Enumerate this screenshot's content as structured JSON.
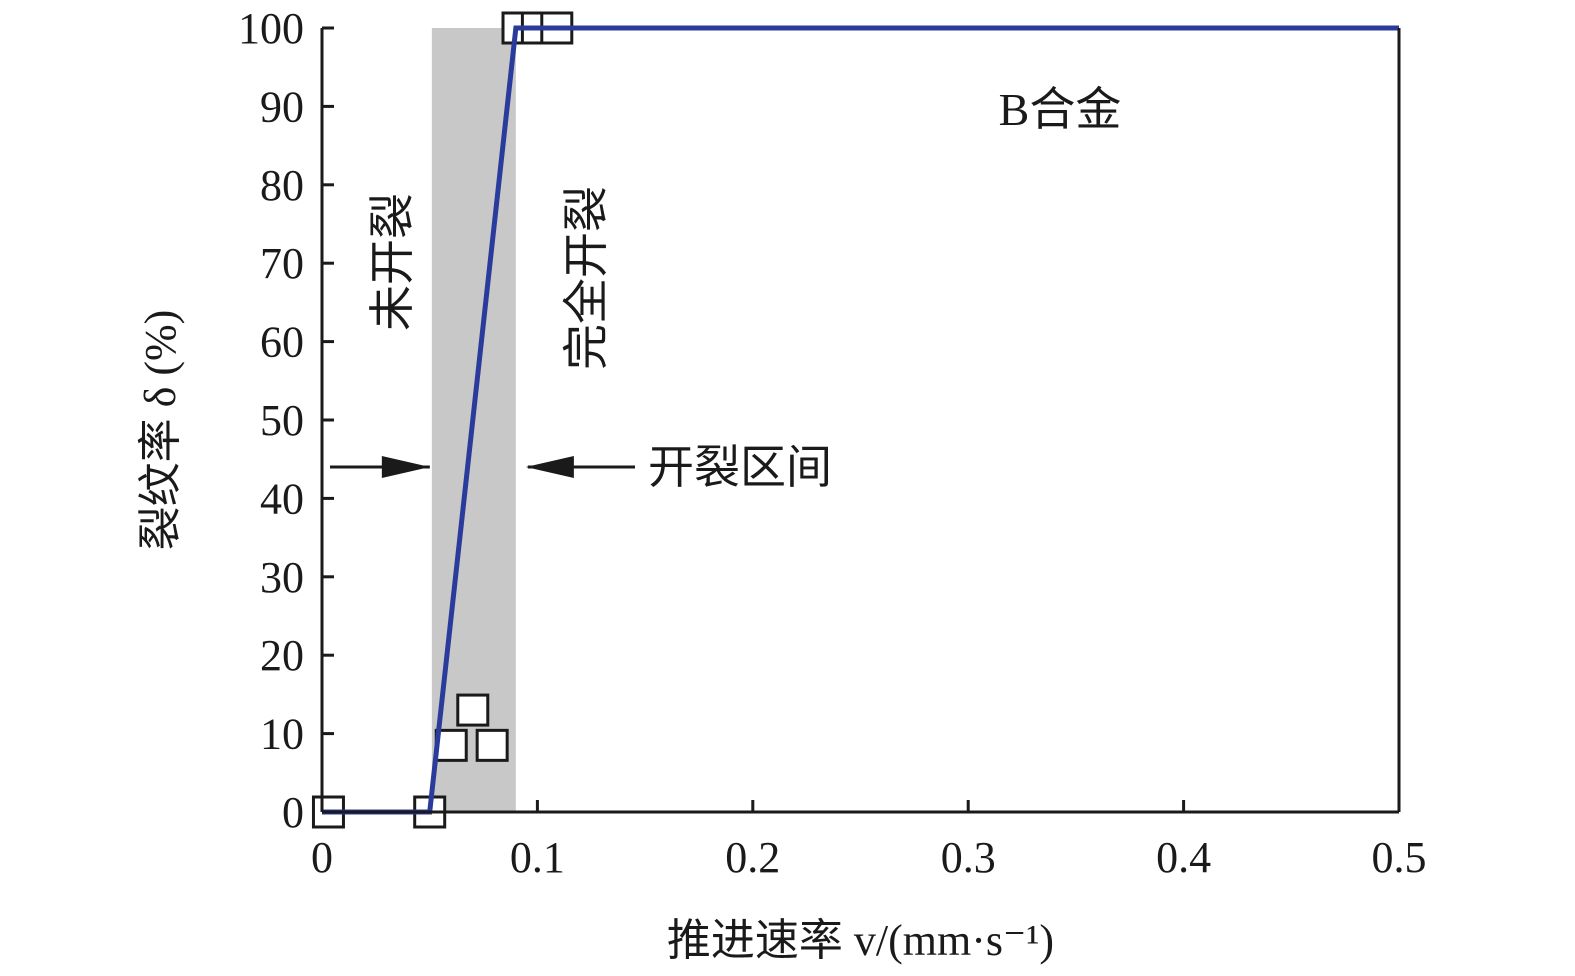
{
  "chart_data": {
    "type": "line",
    "title": "",
    "xlabel": "推进速率 v/(mm·s⁻¹)",
    "ylabel": "裂纹率 δ (%)",
    "xlim": [
      0,
      0.5
    ],
    "ylim": [
      0,
      100
    ],
    "xticks": [
      "0",
      "0.1",
      "0.2",
      "0.3",
      "0.4",
      "0.5"
    ],
    "yticks": [
      "0",
      "10",
      "20",
      "30",
      "40",
      "50",
      "60",
      "70",
      "80",
      "90",
      "100"
    ],
    "grid": false,
    "alloy_label": "B合金",
    "cracking_range": [
      0.051,
      0.09
    ],
    "series": [
      {
        "type": "scatter",
        "marker": "square",
        "x": [
          0.003,
          0.05,
          0.06,
          0.07,
          0.079,
          0.091,
          0.1,
          0.109
        ],
        "y": [
          0,
          0,
          8.5,
          13,
          8.5,
          100,
          100,
          100
        ]
      },
      {
        "type": "line",
        "color": "#2b3b9c",
        "x": [
          0,
          0.05,
          0.09,
          0.5
        ],
        "y": [
          0,
          0,
          100,
          100
        ]
      }
    ],
    "annotations": {
      "uncracked": "未开裂",
      "fully_cracked": "完全开裂",
      "cracking_interval": "开裂区间"
    }
  },
  "colors": {
    "fit_line": "#2b3b9c",
    "shade": "#c8c8c8",
    "axis": "#1a1a1a"
  }
}
